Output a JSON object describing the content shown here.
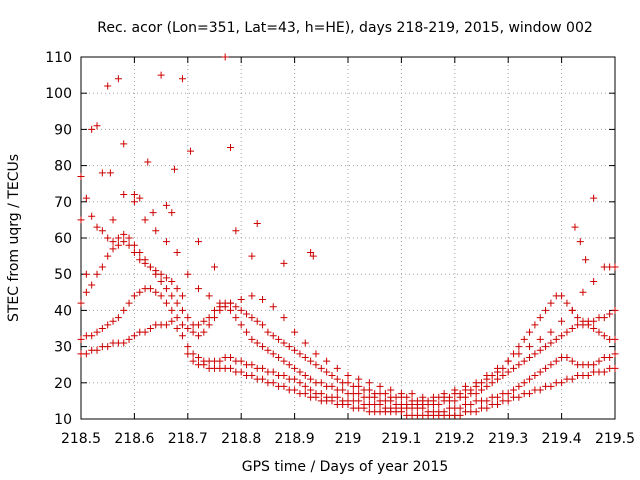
{
  "chart_data": {
    "type": "scatter",
    "title": "Rec. acor (Lon=351, Lat=43, h=HE), days 218-219, 2015, window 002",
    "xlabel": "GPS time / Days of year 2015",
    "ylabel": "STEC from uqrg / TECUs",
    "xlim": [
      218.5,
      219.5
    ],
    "ylim": [
      10,
      110
    ],
    "x_ticks": [
      "218.5",
      "218.6",
      "218.7",
      "218.8",
      "218.9",
      "219",
      "219.1",
      "219.2",
      "219.3",
      "219.4",
      "219.5"
    ],
    "y_ticks": [
      "10",
      "20",
      "30",
      "40",
      "50",
      "60",
      "70",
      "80",
      "90",
      "100",
      "110"
    ],
    "grid": true,
    "legend": "none",
    "marker_color": "#cc0000",
    "marker": "plus",
    "series": [
      {
        "x": [
          218.5,
          218.51,
          218.52,
          218.53,
          218.54,
          218.55,
          218.56,
          218.57,
          218.58,
          218.59,
          218.6,
          218.61,
          218.62,
          218.63,
          218.64,
          218.65,
          218.66,
          218.67,
          218.68,
          218.69,
          218.7,
          218.71,
          218.72,
          218.73,
          218.74,
          218.75,
          218.76,
          218.77,
          218.78,
          218.79,
          218.8,
          218.81,
          218.82,
          218.83,
          218.84,
          218.85,
          218.86,
          218.87,
          218.88,
          218.89,
          218.9,
          218.91,
          218.92,
          218.93,
          218.94,
          218.95,
          218.96,
          218.97,
          218.98,
          218.99,
          219.0,
          219.01,
          219.02,
          219.03,
          219.04,
          219.05,
          219.06,
          219.07,
          219.08,
          219.09,
          219.1,
          219.11,
          219.12,
          219.13,
          219.14,
          219.15,
          219.16,
          219.17,
          219.18,
          219.19,
          219.2,
          219.21,
          219.22,
          219.23,
          219.24,
          219.25,
          219.26,
          219.27,
          219.28,
          219.29,
          219.3,
          219.31,
          219.32,
          219.33,
          219.34,
          219.35,
          219.36,
          219.37,
          219.38,
          219.39,
          219.4,
          219.41,
          219.42,
          219.43,
          219.44,
          219.45,
          219.46,
          219.47,
          219.48,
          219.49,
          219.5
        ],
        "y": [
          28,
          28,
          29,
          29,
          30,
          30,
          31,
          31,
          31,
          32,
          33,
          34,
          34,
          35,
          36,
          36,
          36,
          37,
          35,
          33,
          28,
          26,
          25,
          25,
          24,
          24,
          24,
          24,
          24,
          23,
          23,
          22,
          22,
          21,
          21,
          20,
          20,
          19,
          19,
          18,
          18,
          17,
          17,
          16,
          16,
          15,
          15,
          15,
          14,
          14,
          14,
          13,
          13,
          13,
          12,
          12,
          12,
          12,
          12,
          12,
          12,
          11,
          11,
          11,
          11,
          11,
          11,
          11,
          11,
          11,
          11,
          11,
          12,
          12,
          12,
          13,
          13,
          14,
          14,
          15,
          15,
          16,
          16,
          17,
          17,
          18,
          18,
          19,
          19,
          20,
          20,
          21,
          21,
          22,
          22,
          22,
          23,
          23,
          23,
          24,
          24
        ]
      },
      {
        "x": [
          218.5,
          218.51,
          218.52,
          218.53,
          218.54,
          218.55,
          218.56,
          218.57,
          218.58,
          218.59,
          218.6,
          218.61,
          218.62,
          218.63,
          218.64,
          218.65,
          218.66,
          218.67,
          218.68,
          218.69,
          218.7,
          218.71,
          218.72,
          218.73,
          218.74,
          218.75,
          218.76,
          218.77,
          218.78,
          218.79,
          218.8,
          218.81,
          218.82,
          218.83,
          218.84,
          218.85,
          218.86,
          218.87,
          218.88,
          218.89,
          218.9,
          218.91,
          218.92,
          218.93,
          218.94,
          218.95,
          218.96,
          218.97,
          218.98,
          218.99,
          219.0,
          219.01,
          219.02,
          219.03,
          219.04,
          219.05,
          219.06,
          219.07,
          219.08,
          219.09,
          219.1,
          219.11,
          219.12,
          219.13,
          219.14,
          219.15,
          219.16,
          219.17,
          219.18,
          219.19,
          219.2,
          219.21,
          219.22,
          219.23,
          219.24,
          219.25,
          219.26,
          219.27,
          219.28,
          219.29,
          219.3,
          219.31,
          219.32,
          219.33,
          219.34,
          219.35,
          219.36,
          219.37,
          219.38,
          219.39,
          219.4,
          219.41,
          219.42,
          219.43,
          219.44,
          219.45,
          219.46,
          219.47,
          219.48,
          219.49,
          219.5
        ],
        "y": [
          32,
          33,
          33,
          34,
          35,
          36,
          37,
          38,
          40,
          42,
          44,
          45,
          46,
          46,
          45,
          44,
          42,
          40,
          38,
          36,
          30,
          28,
          27,
          26,
          26,
          26,
          26,
          27,
          27,
          26,
          26,
          25,
          25,
          24,
          24,
          23,
          23,
          22,
          22,
          21,
          21,
          20,
          19,
          18,
          17,
          17,
          16,
          16,
          16,
          15,
          15,
          15,
          15,
          14,
          14,
          14,
          14,
          13,
          13,
          13,
          13,
          13,
          13,
          13,
          13,
          12,
          12,
          12,
          12,
          13,
          13,
          13,
          14,
          14,
          15,
          15,
          15,
          16,
          16,
          17,
          17,
          18,
          19,
          20,
          21,
          22,
          23,
          24,
          25,
          26,
          27,
          27,
          26,
          25,
          25,
          25,
          25,
          26,
          27,
          27,
          28
        ]
      },
      {
        "x": [
          218.5,
          218.51,
          218.52,
          218.53,
          218.54,
          218.55,
          218.56,
          218.57,
          218.58,
          218.59,
          218.6,
          218.61,
          218.62,
          218.63,
          218.64,
          218.65,
          218.66,
          218.67,
          218.68,
          218.69,
          218.7,
          218.71,
          218.72,
          218.73,
          218.74,
          218.75,
          218.76,
          218.77,
          218.78,
          218.79,
          218.8,
          218.81,
          218.82,
          218.83,
          218.84,
          218.85,
          218.86,
          218.87,
          218.88,
          218.89,
          218.9,
          218.91,
          218.92,
          218.93,
          218.94,
          218.95,
          218.96,
          218.97,
          218.98,
          218.99,
          219.0,
          219.01,
          219.02,
          219.03,
          219.04,
          219.05,
          219.06,
          219.07,
          219.08,
          219.09,
          219.1,
          219.11,
          219.12,
          219.13,
          219.14,
          219.15,
          219.16,
          219.17,
          219.18,
          219.19,
          219.2,
          219.21,
          219.22,
          219.23,
          219.24,
          219.25,
          219.26,
          219.27,
          219.28,
          219.29,
          219.3,
          219.31,
          219.32,
          219.33,
          219.34,
          219.35,
          219.36,
          219.37,
          219.38,
          219.39,
          219.4,
          219.41,
          219.42,
          219.43,
          219.44,
          219.45,
          219.46,
          219.47,
          219.48,
          219.49,
          219.5
        ],
        "y": [
          42,
          45,
          47,
          50,
          52,
          55,
          57,
          58,
          59,
          58,
          56,
          54,
          53,
          52,
          51,
          50,
          49,
          48,
          46,
          44,
          38,
          36,
          36,
          37,
          38,
          40,
          41,
          42,
          42,
          41,
          40,
          39,
          38,
          37,
          36,
          34,
          33,
          32,
          31,
          30,
          29,
          28,
          27,
          26,
          25,
          24,
          23,
          22,
          21,
          20,
          20,
          19,
          19,
          18,
          18,
          17,
          17,
          17,
          16,
          16,
          16,
          16,
          15,
          15,
          15,
          15,
          15,
          16,
          16,
          16,
          17,
          17,
          18,
          18,
          19,
          20,
          21,
          22,
          23,
          24,
          26,
          28,
          30,
          32,
          34,
          36,
          38,
          40,
          42,
          44,
          44,
          42,
          40,
          38,
          37,
          36,
          35,
          34,
          33,
          32,
          32
        ]
      },
      {
        "x": [
          218.5,
          218.51,
          218.52,
          218.53,
          218.54,
          218.55,
          218.56,
          218.57,
          218.58,
          218.59,
          218.6,
          218.61,
          218.62,
          218.63,
          218.64,
          218.65,
          218.66,
          218.67,
          218.68,
          218.69,
          218.7,
          218.71,
          218.72,
          218.73,
          218.74,
          218.75,
          218.76,
          218.77,
          218.78,
          218.79,
          218.8,
          218.81,
          218.82,
          218.83,
          218.84,
          218.85,
          218.86,
          218.87,
          218.88,
          218.89,
          218.9,
          218.91,
          218.92,
          218.93,
          218.94,
          218.95,
          218.96,
          218.97,
          218.98,
          218.99,
          219.0,
          219.01,
          219.02,
          219.03,
          219.04,
          219.05,
          219.06,
          219.07,
          219.08,
          219.09,
          219.1,
          219.11,
          219.12,
          219.13,
          219.14,
          219.15,
          219.16,
          219.17,
          219.18,
          219.19,
          219.2,
          219.21,
          219.22,
          219.23,
          219.24,
          219.25,
          219.26,
          219.27,
          219.28,
          219.29,
          219.3,
          219.31,
          219.32,
          219.33,
          219.34,
          219.35,
          219.36,
          219.37,
          219.38,
          219.39,
          219.4,
          219.41,
          219.42,
          219.43,
          219.44,
          219.45,
          219.46,
          219.47,
          219.48,
          219.49,
          219.5
        ],
        "y": [
          65,
          71,
          66,
          63,
          62,
          60,
          59,
          60,
          61,
          60,
          58,
          56,
          54,
          52,
          50,
          48,
          46,
          44,
          42,
          40,
          35,
          34,
          33,
          34,
          36,
          38,
          40,
          41,
          40,
          38,
          36,
          34,
          32,
          31,
          30,
          29,
          28,
          27,
          26,
          25,
          24,
          23,
          22,
          21,
          20,
          20,
          19,
          19,
          18,
          18,
          17,
          17,
          17,
          16,
          16,
          16,
          15,
          15,
          15,
          14,
          14,
          14,
          14,
          14,
          14,
          14,
          14,
          14,
          15,
          15,
          15,
          16,
          16,
          17,
          17,
          18,
          19,
          20,
          21,
          22,
          23,
          24,
          25,
          26,
          27,
          28,
          29,
          30,
          31,
          32,
          33,
          34,
          35,
          36,
          36,
          37,
          37,
          38,
          38,
          39,
          40
        ]
      },
      {
        "x": [
          218.5,
          218.52,
          218.54,
          218.56,
          218.58,
          218.6,
          218.62,
          218.64,
          218.66,
          218.68,
          218.7,
          218.72,
          218.74,
          218.76,
          218.78,
          218.8,
          218.82,
          218.84,
          218.86,
          218.88,
          218.9,
          218.92,
          218.94,
          218.96,
          218.98,
          219.0,
          219.02,
          219.04,
          219.06,
          219.08,
          219.1,
          219.12,
          219.14,
          219.16,
          219.18,
          219.2,
          219.22,
          219.24,
          219.26,
          219.28,
          219.3,
          219.32,
          219.34,
          219.36,
          219.38,
          219.4,
          219.42,
          219.44,
          219.46,
          219.48,
          219.5
        ],
        "y": [
          77,
          90,
          78,
          65,
          72,
          70,
          65,
          62,
          59,
          56,
          50,
          46,
          44,
          42,
          42,
          43,
          44,
          43,
          41,
          38,
          34,
          31,
          28,
          26,
          24,
          22,
          21,
          20,
          19,
          18,
          17,
          17,
          16,
          16,
          17,
          18,
          19,
          20,
          22,
          24,
          26,
          28,
          30,
          32,
          34,
          37,
          40,
          45,
          48,
          52,
          52
        ]
      },
      {
        "x": [
          218.5,
          218.51,
          218.53,
          218.55,
          218.555,
          218.57,
          218.58,
          218.6,
          218.61,
          218.625,
          218.635,
          218.65,
          218.66,
          218.67,
          218.675,
          218.69,
          218.705,
          218.72,
          218.75,
          218.77,
          218.78,
          218.79,
          218.82,
          218.83,
          218.88,
          218.93,
          218.935,
          219.425,
          219.435,
          219.445,
          219.46,
          219.49
        ],
        "y": [
          77,
          50,
          91,
          102,
          78,
          104,
          86,
          72,
          71,
          81,
          67,
          105,
          69,
          67,
          79,
          104,
          84,
          59,
          52,
          110,
          85,
          62,
          55,
          64,
          53,
          56,
          55,
          63,
          59,
          54,
          71,
          52
        ]
      }
    ]
  }
}
